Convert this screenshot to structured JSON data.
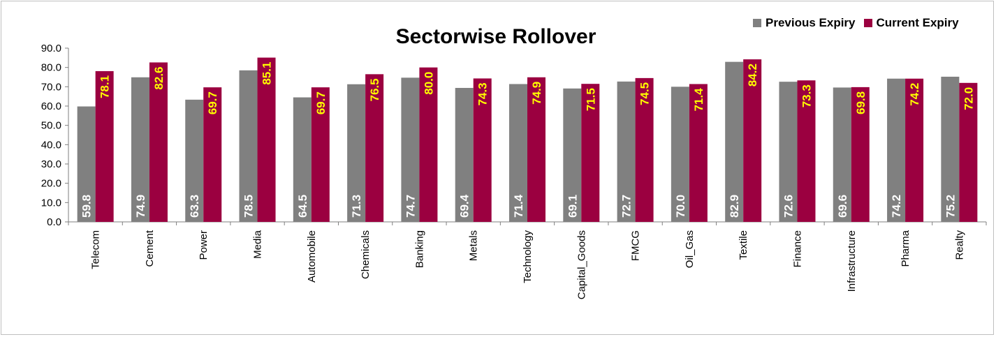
{
  "colors": {
    "previous": "#808080",
    "current": "#9b0040",
    "prev_label": "#ffffff",
    "curr_label": "#ffff00",
    "axis": "#7f7f7f"
  },
  "chart_data": {
    "type": "bar",
    "title": "Sectorwise Rollover",
    "legend_position": "top-right",
    "ylim": [
      0,
      90
    ],
    "yticks": [
      "0.0",
      "10.0",
      "20.0",
      "30.0",
      "40.0",
      "50.0",
      "60.0",
      "70.0",
      "80.0",
      "90.0"
    ],
    "grid": false,
    "categories": [
      "Telecom",
      "Cement",
      "Power",
      "Media",
      "Automobile",
      "Chemicals",
      "Banking",
      "Metals",
      "Technology",
      "Capital_Goods",
      "FMCG",
      "Oil_Gas",
      "Textile",
      "Finance",
      "Infrastructure",
      "Pharma",
      "Realty"
    ],
    "series": [
      {
        "name": "Previous Expiry",
        "values": [
          59.8,
          74.9,
          63.3,
          78.5,
          64.5,
          71.3,
          74.7,
          69.4,
          71.4,
          69.1,
          72.7,
          70.0,
          82.9,
          72.6,
          69.6,
          74.2,
          75.2
        ],
        "labels": [
          "59.8",
          "74.9",
          "63.3",
          "78.5",
          "64.5",
          "71.3",
          "74.7",
          "69.4",
          "71.4",
          "69.1",
          "72.7",
          "70.0",
          "82.9",
          "72.6",
          "69.6",
          "74.2",
          "75.2"
        ]
      },
      {
        "name": "Current Expiry",
        "values": [
          78.1,
          82.6,
          69.7,
          85.1,
          69.7,
          76.5,
          80.0,
          74.3,
          74.9,
          71.5,
          74.5,
          71.4,
          84.2,
          73.3,
          69.8,
          74.2,
          72.0
        ],
        "labels": [
          "78.1",
          "82.6",
          "69.7",
          "85.1",
          "69.7",
          "76.5",
          "80.0",
          "74.3",
          "74.9",
          "71.5",
          "74.5",
          "71.4",
          "84.2",
          "73.3",
          "69.8",
          "74.2",
          "72.0"
        ]
      }
    ]
  }
}
